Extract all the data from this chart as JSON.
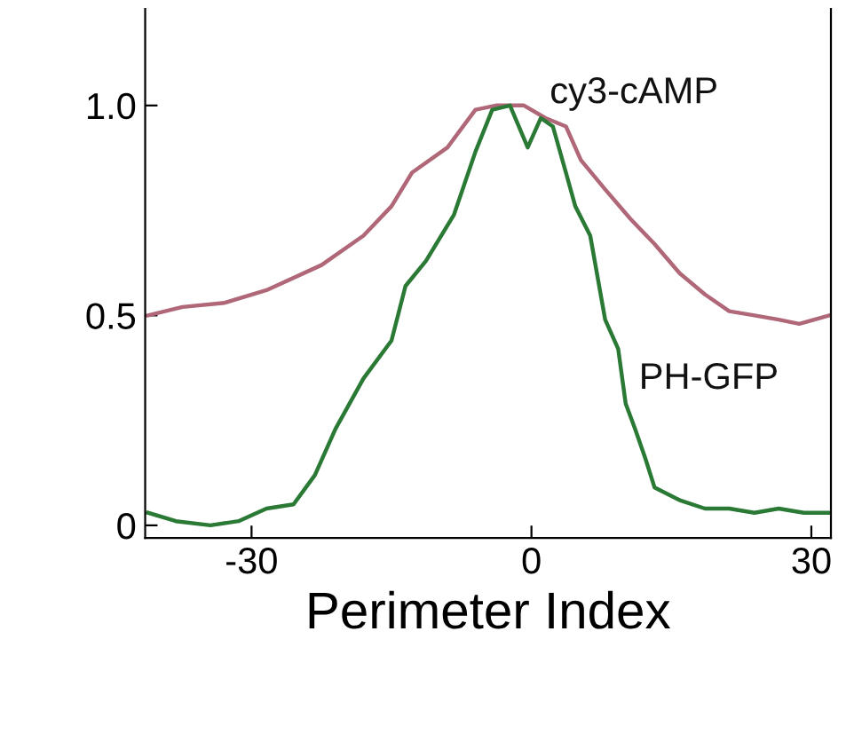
{
  "chart_data": {
    "type": "line",
    "xlabel": "Perimeter Index",
    "xlim": [
      -41.4,
      32.1
    ],
    "ylim": [
      -0.03,
      1.23
    ],
    "xticks": [
      -30,
      0,
      30
    ],
    "yticks": [
      0,
      0.5,
      {
        "value": 1.0,
        "label": "1.0"
      }
    ],
    "grid": false,
    "legend": false,
    "marker": "none",
    "line_style": "solid",
    "series": [
      {
        "name": "cy3-cAMP",
        "color": "#b06878",
        "x": [
          -41.1,
          -37.4,
          -32.9,
          -28.4,
          -22.5,
          -18.0,
          -15.0,
          -12.8,
          -9.0,
          -6.0,
          -3.8,
          -0.8,
          1.5,
          3.7,
          5.3,
          7.9,
          10.6,
          13.2,
          15.9,
          18.6,
          21.2,
          23.9,
          26.5,
          28.7,
          31.9
        ],
        "values": [
          0.5,
          0.52,
          0.53,
          0.56,
          0.62,
          0.69,
          0.76,
          0.84,
          0.9,
          0.99,
          1.0,
          1.0,
          0.97,
          0.95,
          0.87,
          0.8,
          0.73,
          0.67,
          0.6,
          0.55,
          0.51,
          0.5,
          0.49,
          0.48,
          0.5
        ]
      },
      {
        "name": "PH-GFP",
        "color": "#2a7a35",
        "x": [
          -41.1,
          -38.1,
          -34.4,
          -31.4,
          -28.4,
          -25.5,
          -23.2,
          -21.0,
          -18.0,
          -15.0,
          -13.5,
          -11.3,
          -8.3,
          -6.0,
          -4.2,
          -2.3,
          -0.4,
          1.0,
          2.3,
          3.7,
          4.7,
          6.3,
          7.9,
          9.3,
          10.1,
          11.1,
          12.2,
          13.2,
          15.9,
          18.6,
          21.2,
          23.9,
          26.5,
          29.2,
          31.9
        ],
        "values": [
          0.03,
          0.01,
          0.0,
          0.01,
          0.04,
          0.05,
          0.12,
          0.23,
          0.35,
          0.44,
          0.57,
          0.63,
          0.74,
          0.89,
          0.99,
          1.0,
          0.9,
          0.97,
          0.95,
          0.84,
          0.76,
          0.69,
          0.49,
          0.42,
          0.29,
          0.23,
          0.16,
          0.09,
          0.06,
          0.04,
          0.04,
          0.03,
          0.04,
          0.03,
          0.03
        ]
      }
    ]
  }
}
